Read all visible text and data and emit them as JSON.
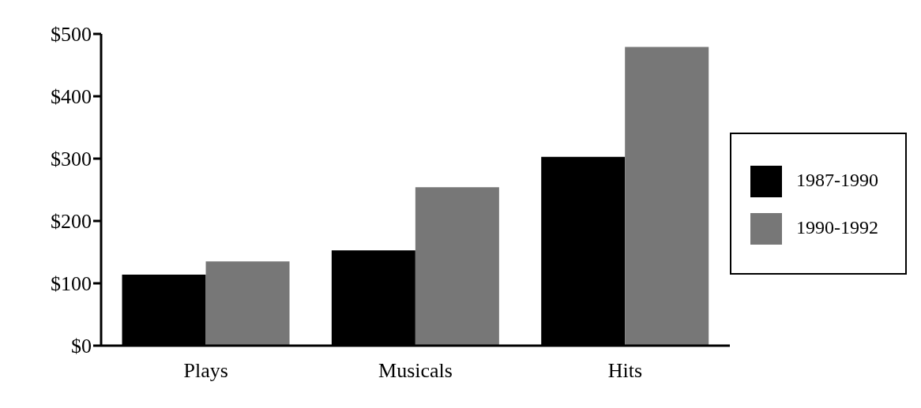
{
  "chart_data": {
    "type": "bar",
    "categories": [
      "Plays",
      "Musicals",
      "Hits"
    ],
    "series": [
      {
        "name": "1987-1990",
        "color": "#000000",
        "values": [
          114,
          153,
          303
        ]
      },
      {
        "name": "1990-1992",
        "color": "#777777",
        "values": [
          135,
          254,
          479
        ]
      }
    ],
    "ylim": [
      0,
      500
    ],
    "yticks": [
      {
        "value": 0,
        "label": "$0"
      },
      {
        "value": 100,
        "label": "$100"
      },
      {
        "value": 200,
        "label": "$200"
      },
      {
        "value": 300,
        "label": "$300"
      },
      {
        "value": 400,
        "label": "$400"
      },
      {
        "value": 500,
        "label": "$500"
      }
    ],
    "grid": false,
    "legend": "right"
  }
}
